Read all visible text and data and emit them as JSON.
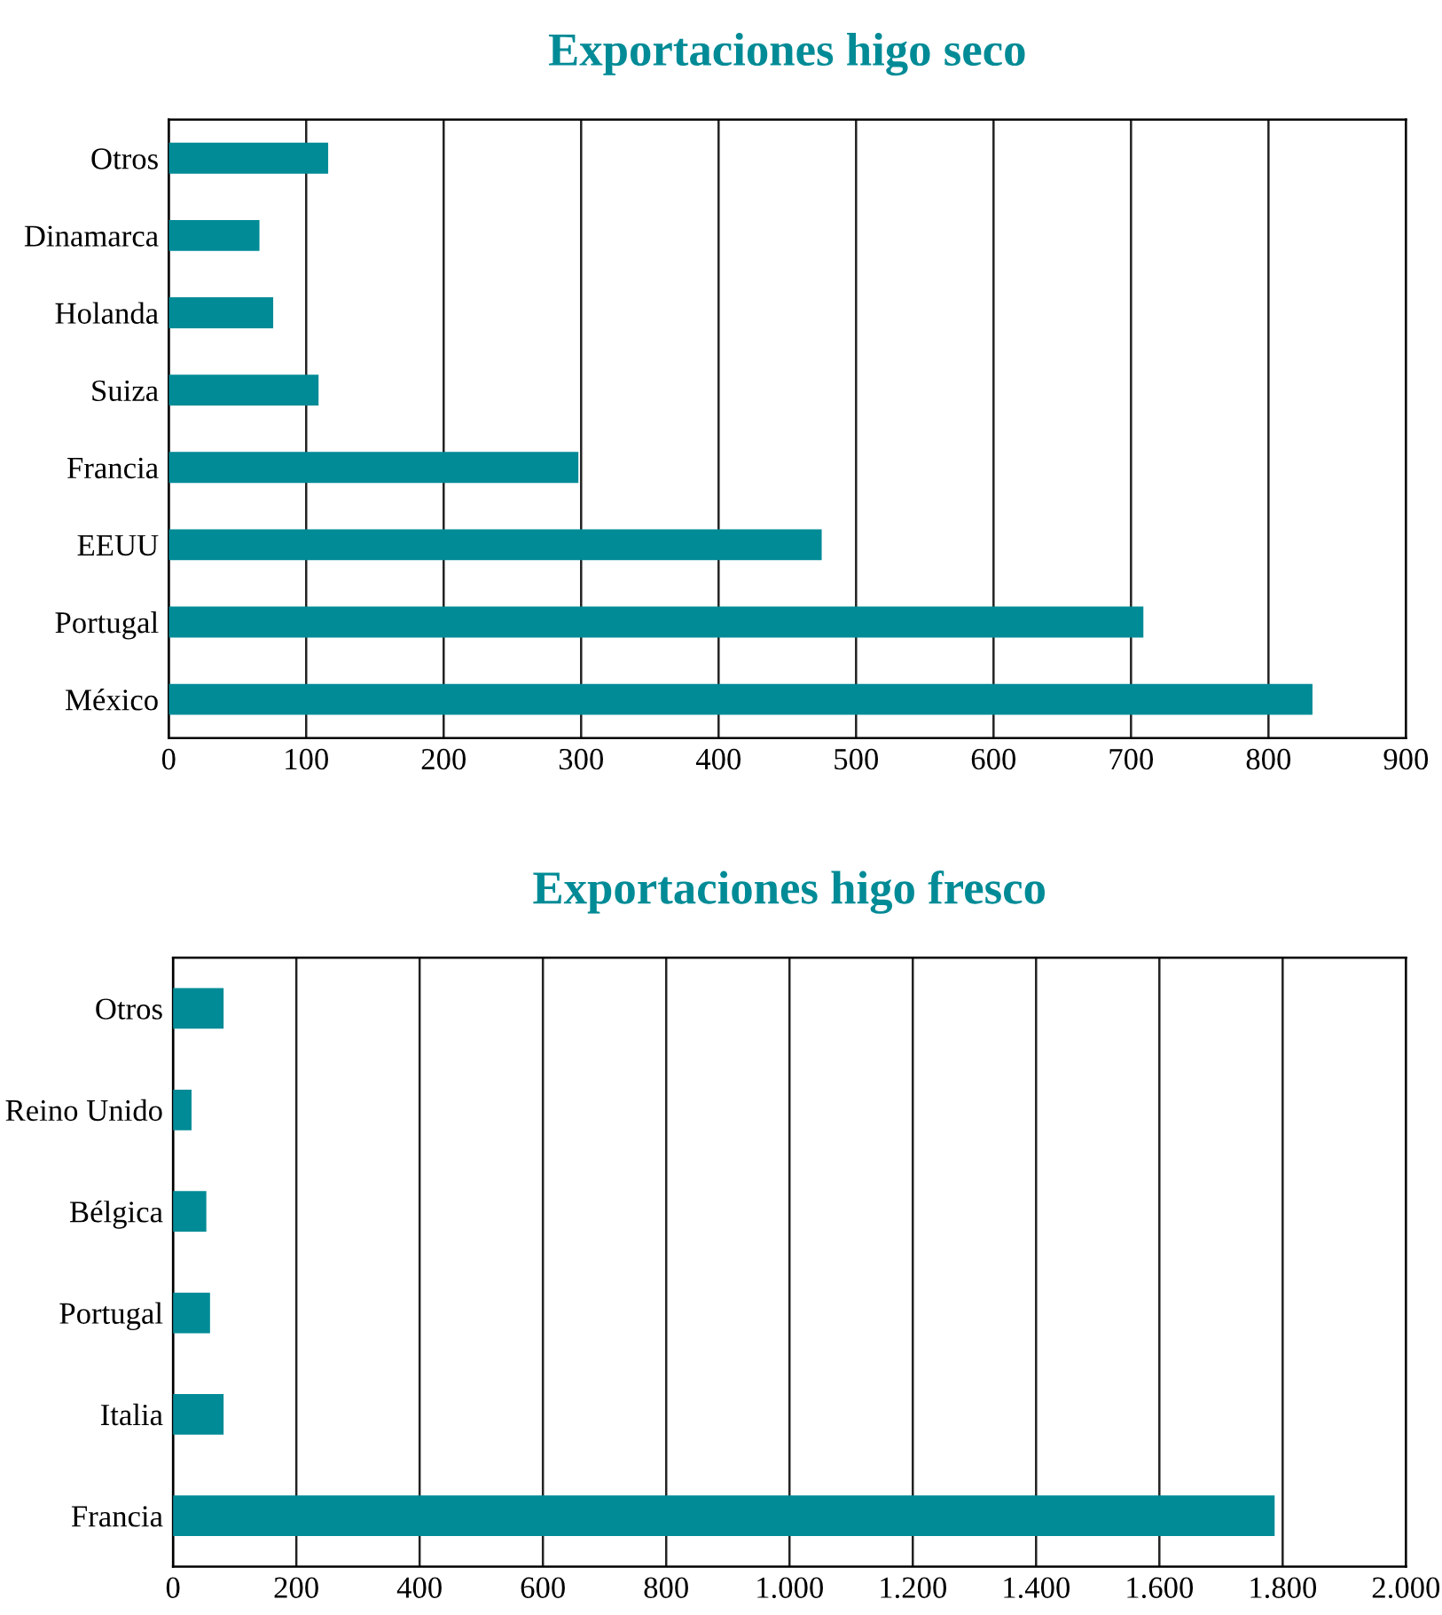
{
  "chart_data": [
    {
      "type": "bar",
      "orientation": "horizontal",
      "title": "Exportaciones higo seco",
      "categories": [
        "Otros",
        "Dinamarca",
        "Holanda",
        "Suiza",
        "Francia",
        "EEUU",
        "Portugal",
        "México"
      ],
      "values": [
        116,
        66,
        76,
        109,
        298,
        475,
        709,
        832
      ],
      "color": "#008b96",
      "xlim": [
        0,
        900
      ],
      "xticks": [
        0,
        100,
        200,
        300,
        400,
        500,
        600,
        700,
        800,
        900
      ],
      "grid": "x",
      "legend": false
    },
    {
      "type": "bar",
      "orientation": "horizontal",
      "title": "Exportaciones higo fresco",
      "categories": [
        "Otros",
        "Reino Unido",
        "Bélgica",
        "Portugal",
        "Italia",
        "Francia"
      ],
      "values": [
        82,
        30,
        54,
        60,
        82,
        1787
      ],
      "color": "#008b96",
      "xlim": [
        0,
        2000
      ],
      "xticks": [
        0,
        200,
        400,
        600,
        800,
        {
          "value": 1000,
          "label": "1.000"
        },
        {
          "value": 1200,
          "label": "1.200"
        },
        {
          "value": 1400,
          "label": "1.400"
        },
        {
          "value": 1600,
          "label": "1.600"
        },
        {
          "value": 1800,
          "label": "1.800"
        },
        {
          "value": 2000,
          "label": "2.000"
        }
      ],
      "grid": "x",
      "legend": false
    }
  ]
}
